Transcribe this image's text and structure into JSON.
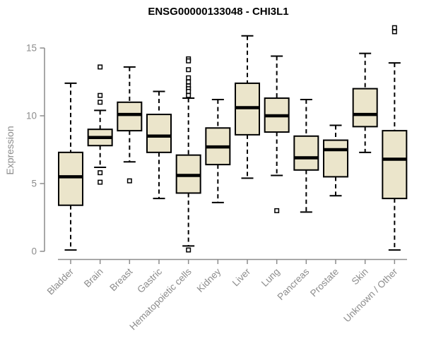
{
  "title": "ENSG00000133048 - CHI3L1",
  "colors": {
    "background": "#ffffff",
    "box_fill": "#ebe5cb",
    "box_border": "#000000",
    "median": "#000000",
    "whisker": "#000000",
    "outlier_fill": "#ffffff",
    "outlier_border": "#000000",
    "axis": "#8c8c8c",
    "tick_label": "#8c8c8c",
    "title_color": "#000000"
  },
  "chart_data": {
    "type": "boxplot",
    "title": "ENSG00000133048 - CHI3L1",
    "xlabel": "",
    "ylabel": "Expression",
    "y_ticks": [
      0,
      5,
      10,
      15
    ],
    "ylim": [
      -0.6,
      16.8
    ],
    "grid": false,
    "legend": "none",
    "categories": [
      "Bladder",
      "Brain",
      "Breast",
      "Gastric",
      "Hematopoietic cells",
      "Kidney",
      "Liver",
      "Lung",
      "Pancreas",
      "Prostate",
      "Skin",
      "Unknown / Other"
    ],
    "series": [
      {
        "name": "Bladder",
        "whislo": 0.1,
        "q1": 3.4,
        "med": 5.5,
        "q3": 7.3,
        "whishi": 12.4,
        "outliers": []
      },
      {
        "name": "Brain",
        "whislo": 6.2,
        "q1": 7.8,
        "med": 8.4,
        "q3": 9.0,
        "whishi": 10.4,
        "outliers": [
          13.6,
          11.5,
          11.0,
          5.8,
          5.1
        ]
      },
      {
        "name": "Breast",
        "whislo": 6.6,
        "q1": 8.9,
        "med": 10.1,
        "q3": 11.0,
        "whishi": 13.6,
        "outliers": [
          5.2
        ]
      },
      {
        "name": "Gastric",
        "whislo": 3.9,
        "q1": 7.3,
        "med": 8.5,
        "q3": 10.1,
        "whishi": 11.8,
        "outliers": []
      },
      {
        "name": "Hematopoietic cells",
        "whislo": 0.4,
        "q1": 4.3,
        "med": 5.6,
        "q3": 7.1,
        "whishi": 11.3,
        "outliers": [
          14.2,
          14.05,
          13.4,
          12.8,
          12.5,
          12.2,
          12.0,
          11.8,
          11.5,
          0.1
        ]
      },
      {
        "name": "Kidney",
        "whislo": 3.6,
        "q1": 6.4,
        "med": 7.7,
        "q3": 9.1,
        "whishi": 11.2,
        "outliers": []
      },
      {
        "name": "Liver",
        "whislo": 5.4,
        "q1": 8.6,
        "med": 10.6,
        "q3": 12.4,
        "whishi": 15.9,
        "outliers": []
      },
      {
        "name": "Lung",
        "whislo": 5.6,
        "q1": 8.8,
        "med": 10.0,
        "q3": 11.3,
        "whishi": 14.4,
        "outliers": [
          3.0
        ]
      },
      {
        "name": "Pancreas",
        "whislo": 2.9,
        "q1": 6.0,
        "med": 6.9,
        "q3": 8.5,
        "whishi": 11.2,
        "outliers": []
      },
      {
        "name": "Prostate",
        "whislo": 4.1,
        "q1": 5.5,
        "med": 7.5,
        "q3": 8.2,
        "whishi": 9.3,
        "outliers": []
      },
      {
        "name": "Skin",
        "whislo": 7.3,
        "q1": 9.2,
        "med": 10.1,
        "q3": 12.0,
        "whishi": 14.6,
        "outliers": []
      },
      {
        "name": "Unknown / Other",
        "whislo": 0.1,
        "q1": 3.9,
        "med": 6.8,
        "q3": 8.9,
        "whishi": 13.9,
        "outliers": [
          16.5,
          16.2
        ]
      }
    ]
  }
}
